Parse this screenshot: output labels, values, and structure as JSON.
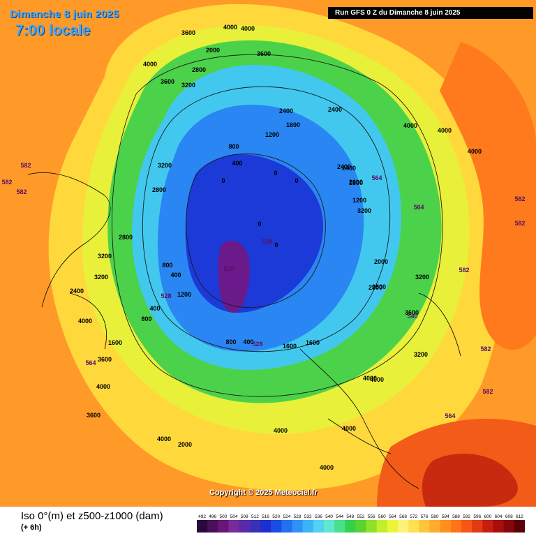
{
  "header": {
    "date": "Dimanche 8 juin 2025",
    "time": "7:00 locale",
    "run": "Run GFS 0 Z du Dimanche 8 juin 2025"
  },
  "copyright": "Copyright © 2025 Meteociel.fr",
  "legend": {
    "title": "Iso 0°(m) et z500-z1000 (dam)",
    "subtitle": "(+ 6h)",
    "values": [
      "492",
      "496",
      "500",
      "504",
      "508",
      "512",
      "516",
      "520",
      "524",
      "528",
      "532",
      "536",
      "540",
      "544",
      "548",
      "552",
      "556",
      "560",
      "564",
      "568",
      "572",
      "576",
      "580",
      "584",
      "588",
      "592",
      "596",
      "600",
      "604",
      "608",
      "612"
    ],
    "colors": [
      "#2a0a3c",
      "#4a0f5c",
      "#6a1578",
      "#7a2a9a",
      "#5a2aa8",
      "#3a30b8",
      "#1e2fd0",
      "#1c4ce6",
      "#2470f0",
      "#2f92f4",
      "#3bb3f5",
      "#55d0f2",
      "#5ee8d0",
      "#49e08a",
      "#36cf4a",
      "#5ad230",
      "#8ee22a",
      "#c2ef2c",
      "#ecf53a",
      "#fff27a",
      "#ffe052",
      "#ffc53a",
      "#ffab2c",
      "#ff9020",
      "#ff741a",
      "#f65616",
      "#e23a12",
      "#c81e10",
      "#a80e0e",
      "#86060a",
      "#5c0006"
    ]
  },
  "map_labels": {
    "iso0": [
      "4000",
      "4000",
      "3600",
      "3600",
      "4000",
      "3600",
      "3200",
      "2000",
      "2800",
      "3200",
      "2400",
      "1600",
      "1200",
      "2400",
      "1600",
      "1200",
      "800",
      "400",
      "0",
      "0",
      "0",
      "0",
      "0",
      "2400",
      "2000",
      "3200",
      "4000",
      "2800",
      "2000",
      "2400",
      "2800",
      "3200",
      "4000",
      "2400",
      "3200",
      "800",
      "400",
      "1200",
      "800",
      "400",
      "1600",
      "3600",
      "4000",
      "3600",
      "4000",
      "2000",
      "1600",
      "1600",
      "800",
      "400",
      "4000",
      "3200",
      "3200",
      "2800",
      "2800",
      "4000",
      "4000",
      "4000",
      "3600",
      "4000",
      "4000",
      "4000"
    ],
    "z500": [
      "582",
      "582",
      "582",
      "564",
      "582",
      "528",
      "510",
      "528",
      "564",
      "564",
      "582",
      "582",
      "582",
      "582",
      "564",
      "540",
      "528"
    ]
  }
}
